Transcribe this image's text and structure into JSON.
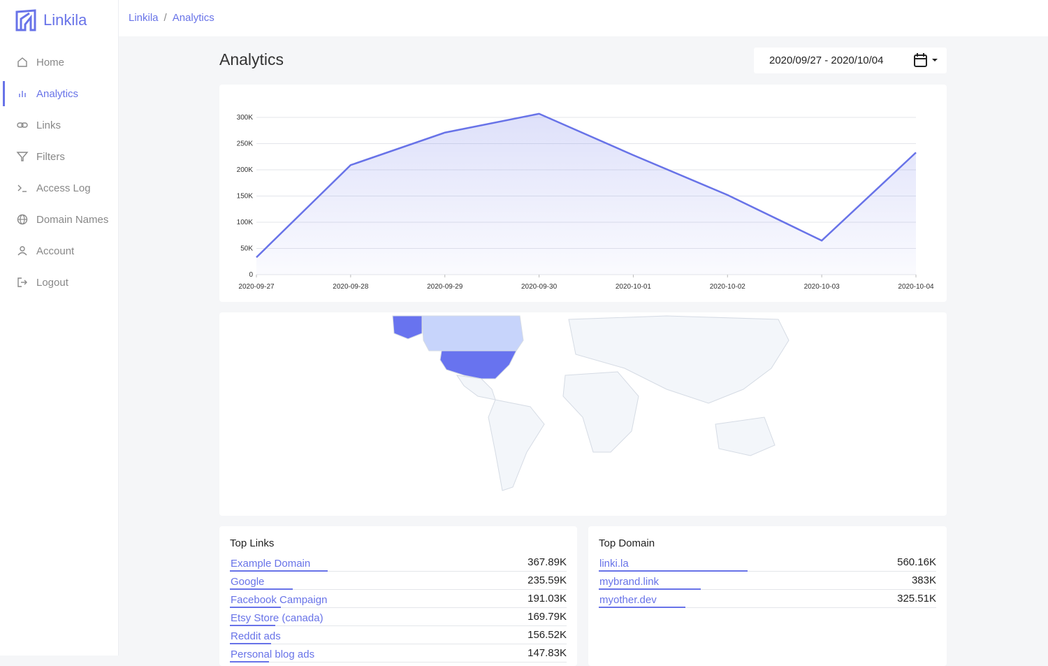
{
  "brand": "Linkila",
  "breadcrumb": {
    "items": [
      "Linkila",
      "Analytics"
    ],
    "separator": "/"
  },
  "nav": {
    "items": [
      "Home",
      "Analytics",
      "Links",
      "Filters",
      "Access Log",
      "Domain Names",
      "Account",
      "Logout"
    ],
    "active": 1
  },
  "page_title": "Analytics",
  "date_range": "2020/09/27 - 2020/10/04",
  "chart_data": {
    "type": "area",
    "x": [
      "2020-09-27",
      "2020-09-28",
      "2020-09-29",
      "2020-09-30",
      "2020-10-01",
      "2020-10-02",
      "2020-10-03",
      "2020-10-04"
    ],
    "values": [
      33000,
      209000,
      271000,
      307000,
      228000,
      152000,
      65000,
      233000
    ],
    "color": "#6873e8",
    "ylim": [
      0,
      320000
    ],
    "yticks": [
      0,
      {
        "value": 50000,
        "label": "50K"
      },
      {
        "value": 100000,
        "label": "100K"
      },
      {
        "value": 150000,
        "label": "150K"
      },
      {
        "value": 200000,
        "label": "200K"
      },
      {
        "value": 250000,
        "label": "250K"
      },
      {
        "value": 300000,
        "label": "300K"
      }
    ],
    "grid": true
  },
  "top_links": {
    "title": "Top Links",
    "rows": [
      {
        "name": "Example Domain",
        "value": 367890,
        "label": "367.89K"
      },
      {
        "name": "Google",
        "value": 235590,
        "label": "235.59K"
      },
      {
        "name": "Facebook Campaign",
        "value": 191030,
        "label": "191.03K"
      },
      {
        "name": "Etsy Store (canada)",
        "value": 169790,
        "label": "169.79K"
      },
      {
        "name": "Reddit ads",
        "value": 156520,
        "label": "156.52K"
      },
      {
        "name": "Personal blog ads",
        "value": 147830,
        "label": "147.83K"
      }
    ]
  },
  "top_domain": {
    "title": "Top Domain",
    "rows": [
      {
        "name": "linki.la",
        "value": 560160,
        "label": "560.16K"
      },
      {
        "name": "mybrand.link",
        "value": 383000,
        "label": "383K"
      },
      {
        "name": "myother.dev",
        "value": 325510,
        "label": "325.51K"
      }
    ]
  }
}
